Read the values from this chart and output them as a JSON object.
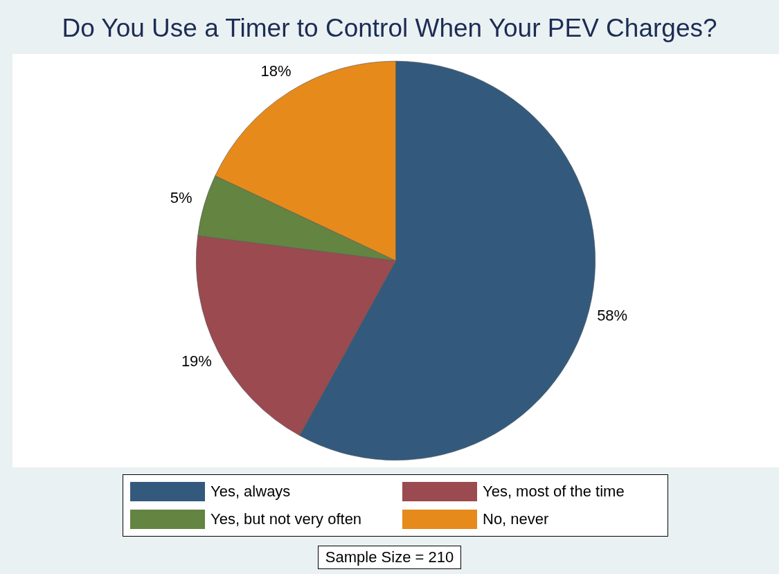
{
  "chart_data": {
    "type": "pie",
    "title": "Do You Use a Timer to Control When Your PEV Charges?",
    "categories": [
      "Yes, always",
      "Yes, most of the time",
      "Yes, but not very often",
      "No, never"
    ],
    "values": [
      58,
      19,
      5,
      18
    ],
    "value_labels": [
      "58%",
      "19%",
      "5%",
      "18%"
    ],
    "colors": [
      "#335a7c",
      "#9b4a4f",
      "#648442",
      "#e68a1b"
    ],
    "legend": "bottom",
    "annotations": [
      "Sample Size = 210"
    ]
  }
}
